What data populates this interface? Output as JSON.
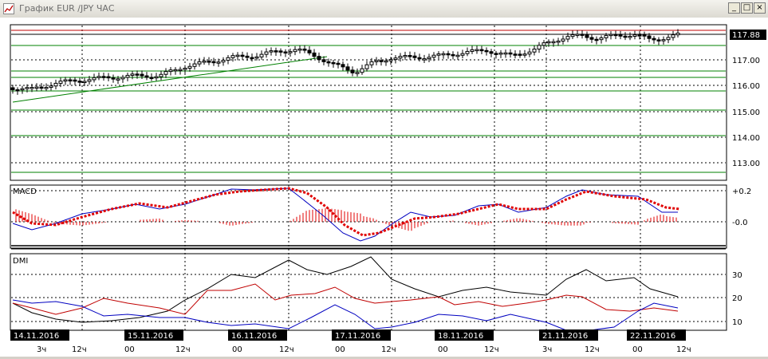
{
  "window": {
    "title": "График EUR /JPY  ЧАС",
    "btn_minimize": "_",
    "btn_maximize": "□",
    "btn_close": "×"
  },
  "price_panel": {
    "current_price_label": "117.88",
    "y_ticks": [
      "117.00",
      "116.00",
      "115.00",
      "114.00",
      "113.00"
    ]
  },
  "macd_panel": {
    "name": "MACD",
    "y_ticks": [
      "+0.2",
      "-0.0"
    ]
  },
  "dmi_panel": {
    "name": "DMI",
    "y_ticks": [
      "30",
      "20",
      "10"
    ]
  },
  "date_labels": [
    "14.11.2016",
    "15.11.2016",
    "16.11.2016",
    "17.11.2016",
    "18.11.2016",
    "21.11.2016",
    "22.11.2016"
  ],
  "hour_labels": [
    {
      "text": "3ч"
    },
    {
      "text": "12ч"
    },
    {
      "text": "00"
    },
    {
      "text": "12ч"
    },
    {
      "text": "00"
    },
    {
      "text": "12ч"
    },
    {
      "text": "00"
    },
    {
      "text": "12ч"
    },
    {
      "text": "00"
    },
    {
      "text": "12ч"
    },
    {
      "text": "3ч"
    },
    {
      "text": "12ч"
    },
    {
      "text": "00"
    },
    {
      "text": "12ч"
    }
  ],
  "colors": {
    "up_candle": "#ffffff",
    "down_candle": "#000000",
    "support_lines": "#008000",
    "resistance_lines": "#c00000",
    "price_tag_bg": "#000000",
    "macd_line": "#0000c0",
    "macd_signal": "#e00000",
    "macd_hist": "#e00000",
    "dmi_adx": "#000000",
    "dmi_plus": "#c00000",
    "dmi_minus": "#0000c0"
  }
}
